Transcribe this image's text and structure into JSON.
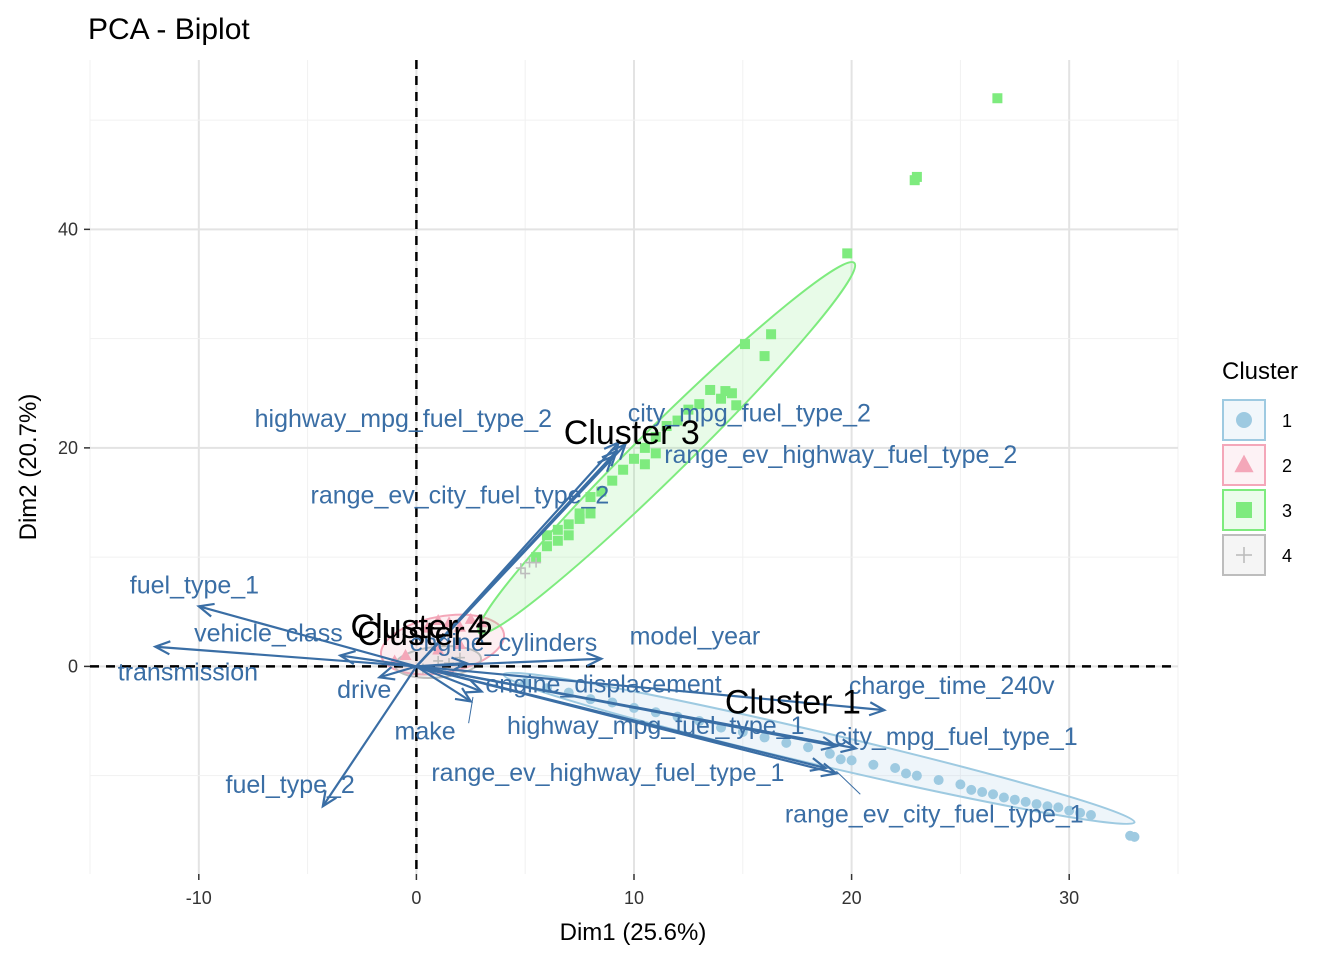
{
  "chart_data": {
    "type": "scatter",
    "title": "PCA - Biplot",
    "xlabel": "Dim1 (25.6%)",
    "ylabel": "Dim2 (20.7%)",
    "xlim": [
      -15,
      35
    ],
    "ylim": [
      -19,
      55.5
    ],
    "x_ticks": [
      -10,
      0,
      10,
      20,
      30
    ],
    "y_ticks": [
      0,
      20,
      40
    ],
    "grid": true,
    "reference_lines": {
      "x": 0,
      "y": 0
    },
    "legend": {
      "title": "Cluster",
      "position": "right",
      "entries": [
        {
          "label": "1",
          "shape": "circle",
          "color": "#9ecae1"
        },
        {
          "label": "2",
          "shape": "triangle",
          "color": "#f4a7b9"
        },
        {
          "label": "3",
          "shape": "square",
          "color": "#7eeb7e"
        },
        {
          "label": "4",
          "shape": "cross",
          "color": "#bdbdbd"
        }
      ]
    },
    "arrow_color": "#3a6ea5",
    "variables": [
      {
        "name": "fuel_type_1",
        "x": -10.0,
        "y": 5.5,
        "label_x": -10.2,
        "label_y": 7.3
      },
      {
        "name": "vehicle_class",
        "x": -3.5,
        "y": 1.0,
        "label_x": -6.8,
        "label_y": 2.9
      },
      {
        "name": "transmission",
        "x": -12.0,
        "y": 1.8,
        "label_x": -10.5,
        "label_y": -0.7
      },
      {
        "name": "fuel_type_2",
        "x": -4.3,
        "y": -12.8,
        "label_x": -5.8,
        "label_y": -11.0
      },
      {
        "name": "drive",
        "x": -1.7,
        "y": -1.0,
        "label_x": -2.4,
        "label_y": -2.3
      },
      {
        "name": "make",
        "x": 2.5,
        "y": -3.2,
        "label_x": 0.4,
        "label_y": -6.1
      },
      {
        "name": "engine_cylinders",
        "x": 2.3,
        "y": 0.3,
        "label_x": 4.0,
        "label_y": 2.0
      },
      {
        "name": "engine_displacement",
        "x": 3.0,
        "y": -2.3,
        "label_x": 8.6,
        "label_y": -1.8
      },
      {
        "name": "model_year",
        "x": 8.5,
        "y": 0.7,
        "label_x": 12.8,
        "label_y": 2.6
      },
      {
        "name": "charge_time_240v",
        "x": 21.5,
        "y": -4.0,
        "label_x": 24.6,
        "label_y": -1.9
      },
      {
        "name": "city_mpg_fuel_type_1",
        "x": 20.2,
        "y": -7.5,
        "label_x": 24.8,
        "label_y": -6.6
      },
      {
        "name": "highway_mpg_fuel_type_1",
        "x": 19.3,
        "y": -7.3,
        "label_x": 11.0,
        "label_y": -5.6
      },
      {
        "name": "range_ev_highway_fuel_type_1",
        "x": 18.8,
        "y": -9.3,
        "label_x": 8.8,
        "label_y": -9.9
      },
      {
        "name": "range_ev_city_fuel_type_1",
        "x": 19.3,
        "y": -9.8,
        "label_x": 23.8,
        "label_y": -13.7
      },
      {
        "name": "highway_mpg_fuel_type_2",
        "x": 9.3,
        "y": 20.5,
        "label_x": -0.6,
        "label_y": 22.5
      },
      {
        "name": "city_mpg_fuel_type_2",
        "x": 9.6,
        "y": 20.3,
        "label_x": 15.3,
        "label_y": 23.0
      },
      {
        "name": "range_ev_highway_fuel_type_2",
        "x": 9.2,
        "y": 19.7,
        "label_x": 19.5,
        "label_y": 19.2
      },
      {
        "name": "range_ev_city_fuel_type_2",
        "x": 9.0,
        "y": 19.2,
        "label_x": 2.0,
        "label_y": 15.5
      }
    ],
    "clusters": [
      {
        "name": "Cluster 1",
        "label_x": 17.3,
        "label_y": -3.5
      },
      {
        "name": "Cluster 2",
        "label_x": 0.4,
        "label_y": 2.8
      },
      {
        "name": "Cluster 3",
        "label_x": 9.9,
        "label_y": 21.2
      },
      {
        "name": "Cluster 4",
        "label_x": 0.1,
        "label_y": 3.4
      }
    ],
    "series": [
      {
        "name": "1",
        "points": [
          [
            5,
            -1.5
          ],
          [
            6,
            -2.0
          ],
          [
            7,
            -2.4
          ],
          [
            8,
            -3.0
          ],
          [
            9,
            -3.3
          ],
          [
            10,
            -3.8
          ],
          [
            11,
            -4.2
          ],
          [
            12,
            -4.6
          ],
          [
            13,
            -5.0
          ],
          [
            14,
            -5.6
          ],
          [
            15,
            -6.0
          ],
          [
            16,
            -6.5
          ],
          [
            17,
            -7.0
          ],
          [
            18,
            -7.4
          ],
          [
            19,
            -8.0
          ],
          [
            19.5,
            -8.5
          ],
          [
            20,
            -8.6
          ],
          [
            21,
            -9.0
          ],
          [
            22,
            -9.3
          ],
          [
            22.5,
            -9.8
          ],
          [
            23,
            -10.0
          ],
          [
            24,
            -10.4
          ],
          [
            25,
            -10.8
          ],
          [
            25.5,
            -11.3
          ],
          [
            26,
            -11.5
          ],
          [
            26.5,
            -11.7
          ],
          [
            27,
            -12.0
          ],
          [
            27.5,
            -12.2
          ],
          [
            28,
            -12.4
          ],
          [
            28.5,
            -12.6
          ],
          [
            29,
            -12.8
          ],
          [
            29.5,
            -12.9
          ],
          [
            30,
            -13.2
          ],
          [
            30.5,
            -13.4
          ],
          [
            31,
            -13.6
          ],
          [
            32.8,
            -15.5
          ],
          [
            33.0,
            -15.6
          ]
        ]
      },
      {
        "name": "2",
        "points": [
          [
            0.5,
            3.5
          ],
          [
            1.0,
            4.2
          ],
          [
            1.5,
            4.0
          ],
          [
            2.0,
            3.6
          ],
          [
            2.5,
            4.3
          ],
          [
            3.0,
            4.0
          ],
          [
            -0.5,
            1.0
          ],
          [
            -1.0,
            0.5
          ],
          [
            1.0,
            1.5
          ],
          [
            2.0,
            2.0
          ]
        ]
      },
      {
        "name": "3",
        "points": [
          [
            26.7,
            52.0
          ],
          [
            22.9,
            44.5
          ],
          [
            23.0,
            44.8
          ],
          [
            19.8,
            37.8
          ],
          [
            16.3,
            30.4
          ],
          [
            15.1,
            29.5
          ],
          [
            16.0,
            28.4
          ],
          [
            14.5,
            25.0
          ],
          [
            13.5,
            25.3
          ],
          [
            14.0,
            24.5
          ],
          [
            13.0,
            24.0
          ],
          [
            12.5,
            23.5
          ],
          [
            12.0,
            22.5
          ],
          [
            11.5,
            22.0
          ],
          [
            11.0,
            21.0
          ],
          [
            10.5,
            20.0
          ],
          [
            10.0,
            19.0
          ],
          [
            9.5,
            18.0
          ],
          [
            9.0,
            17.0
          ],
          [
            8.5,
            16.0
          ],
          [
            8.0,
            15.5
          ],
          [
            7.5,
            14.0
          ],
          [
            7.0,
            13.0
          ],
          [
            6.5,
            12.5
          ],
          [
            6.0,
            12.0
          ],
          [
            6.5,
            11.5
          ],
          [
            7.0,
            12.0
          ],
          [
            6.0,
            11.0
          ],
          [
            7.5,
            13.5
          ],
          [
            8.0,
            14.0
          ],
          [
            5.5,
            10.0
          ],
          [
            10.5,
            18.5
          ],
          [
            11.0,
            19.5
          ],
          [
            14.2,
            25.2
          ],
          [
            14.7,
            23.9
          ]
        ]
      },
      {
        "name": "4",
        "points": [
          [
            4.8,
            9.0
          ],
          [
            5.2,
            9.5
          ],
          [
            5.5,
            9.5
          ],
          [
            5.0,
            8.5
          ],
          [
            1.0,
            0.5
          ],
          [
            1.5,
            0.3
          ],
          [
            2.0,
            0.8
          ],
          [
            0.3,
            -0.2
          ]
        ]
      }
    ],
    "ellipses": [
      {
        "cluster": "1",
        "cx": 18.5,
        "cy": -7.5,
        "rx": 16.0,
        "ry": 0.9,
        "angle_data": -25
      },
      {
        "cluster": "2",
        "cx": 1.2,
        "cy": 2.0,
        "rx": 3.0,
        "ry": 1.5,
        "angle_data": 20
      },
      {
        "cluster": "3",
        "cx": 11.5,
        "cy": 20.0,
        "rx": 19.0,
        "ry": 2.0,
        "angle_data": 63
      },
      {
        "cluster": "4",
        "cx": 1.0,
        "cy": 0.4,
        "rx": 2.0,
        "ry": 0.8,
        "angle_data": 10
      }
    ]
  }
}
